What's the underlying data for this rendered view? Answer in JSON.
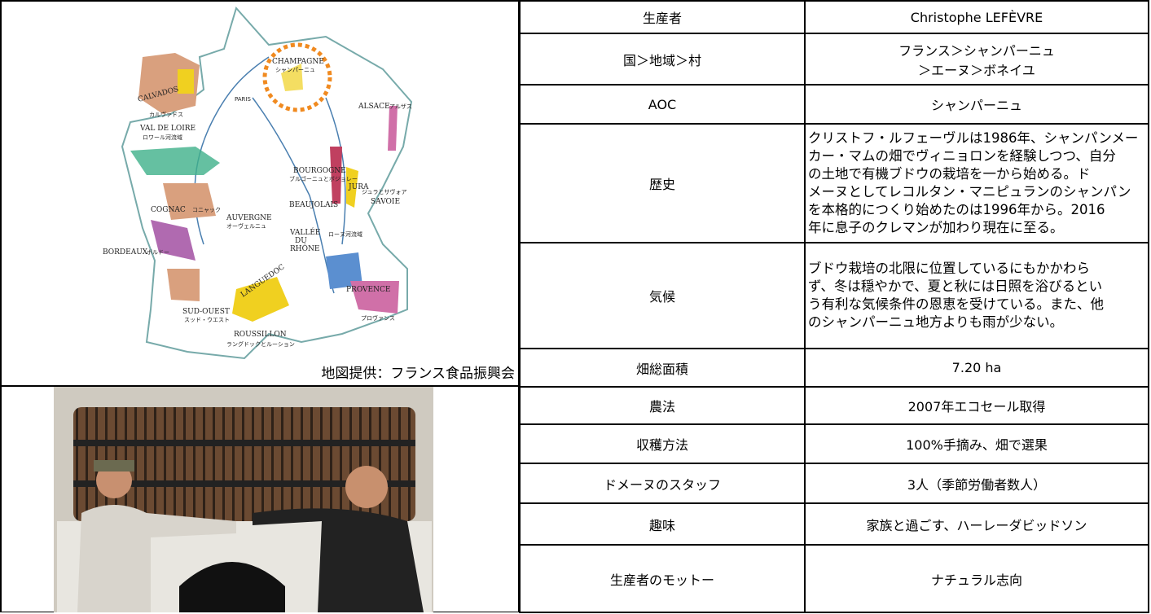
{
  "map": {
    "labels": [
      "CHAMPAGNE",
      "シャンパーニュ",
      "CALVADOS",
      "カルヴァドス",
      "PARIS",
      "ALSACE",
      "アルザス",
      "VAL DE LOIRE",
      "ロワール河流域",
      "BOURGOGNE",
      "ブルゴーニュとボジョレー",
      "JURA",
      "ジュラとサヴォア",
      "SAVOIE",
      "BEAUJOLAIS",
      "COGNAC",
      "コニャック",
      "AUVERGNE",
      "オーヴェルニュ",
      "VALLÉE",
      "DU",
      "RHÔNE",
      "ローヌ河流域",
      "BORDEAUX",
      "ボルドー",
      "LANGUEDOC",
      "PROVENCE",
      "プロヴァンス",
      "SUD-OUEST",
      "スッド・ウエスト",
      "ROUSSILLON",
      "ラングドックとルーション"
    ],
    "credit": "地図提供：フランス食品振興会"
  },
  "table": {
    "rows": [
      {
        "label": "生産者",
        "value": [
          "Christophe LEFÈVRE"
        ]
      },
      {
        "label": "国＞地域＞村",
        "value": [
          "フランス＞シャンパーニュ",
          "＞エーヌ＞ボネイユ"
        ]
      },
      {
        "label": "AOC",
        "value": [
          "シャンパーニュ"
        ]
      },
      {
        "label": "歴史",
        "value": [
          "クリストフ・ルフェーヴルは1986年、シャンパンメー",
          "カー・マムの畑でヴィニョロンを経験しつつ、自分",
          "の土地で有機ブドウの栽培を一から始める。ド",
          "メーヌとしてレコルタン・マニピュランのシャンパン",
          "を本格的につくり始めたのは1996年から。2016",
          "年に息子のクレマンが加わり現在に至る。"
        ]
      },
      {
        "label": "気候",
        "value": [
          "ブドウ栽培の北限に位置しているにもかかわら",
          "ず、冬は穏やかで、夏と秋には日照を浴びるとい",
          "う有利な気候条件の恩恵を受けている。また、他",
          "のシャンパーニュ地方よりも雨が少ない。"
        ]
      },
      {
        "label": "畑総面積",
        "value": [
          "7.20 ha"
        ]
      },
      {
        "label": "農法",
        "value": [
          "2007年エコセール取得"
        ]
      },
      {
        "label": "収穫方法",
        "value": [
          "100%手摘み、畑で選果"
        ]
      },
      {
        "label": "ドメーヌのスタッフ",
        "value": [
          "3人（季節労働者数人）"
        ]
      },
      {
        "label": "趣味",
        "value": [
          "家族と過ごす、ハーレーダビッドソン"
        ]
      },
      {
        "label": "生産者のモットー",
        "value": [
          "ナチュラル志向"
        ]
      }
    ]
  }
}
